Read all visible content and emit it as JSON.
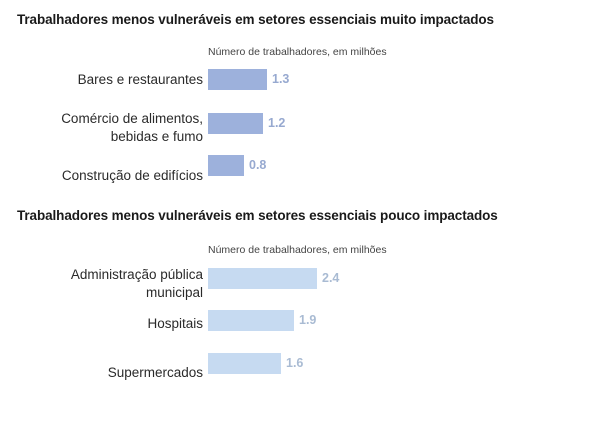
{
  "chart_data": [
    {
      "type": "bar",
      "title": "Trabalhadores menos vulneráveis em setores essenciais muito impactados",
      "subtitle": "Número de trabalhadores, em milhões",
      "categories": [
        "Bares e restaurantes",
        "Comércio de alimentos,\nbebidas e fumo",
        "Construção de edifícios"
      ],
      "values": [
        1.3,
        1.2,
        0.8
      ],
      "value_labels": [
        "1.3",
        "1.2",
        "0.8"
      ],
      "orientation": "horizontal",
      "bar_color": "#9db1dc",
      "label_color": "#97a9d0"
    },
    {
      "type": "bar",
      "title": "Trabalhadores menos vulneráveis em setores essenciais pouco impactados",
      "subtitle": "Número de trabalhadores, em milhões",
      "categories": [
        "Administração pública\nmunicipal",
        "Hospitais",
        "Supermercados"
      ],
      "values": [
        2.4,
        1.9,
        1.6
      ],
      "value_labels": [
        "2.4",
        "1.9",
        "1.6"
      ],
      "orientation": "horizontal",
      "bar_color": "#c6daf1",
      "label_color": "#a9bbd3"
    }
  ]
}
